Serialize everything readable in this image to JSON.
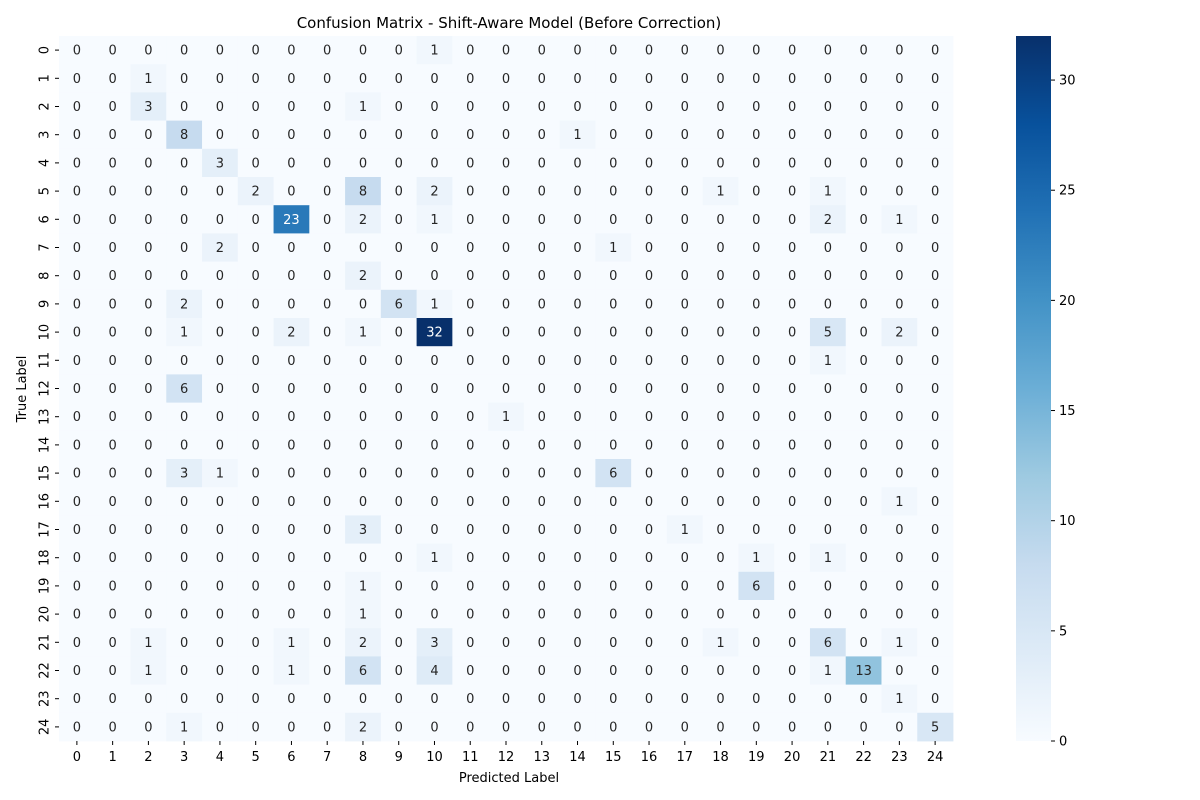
{
  "chart_data": {
    "type": "heatmap",
    "title": "Confusion Matrix - Shift-Aware Model (Before Correction)",
    "xlabel": "Predicted Label",
    "ylabel": "True Label",
    "x_tick_labels": [
      "0",
      "1",
      "2",
      "3",
      "4",
      "5",
      "6",
      "7",
      "8",
      "9",
      "10",
      "11",
      "12",
      "13",
      "14",
      "15",
      "16",
      "17",
      "18",
      "19",
      "20",
      "21",
      "22",
      "23",
      "24"
    ],
    "y_tick_labels": [
      "0",
      "1",
      "2",
      "3",
      "4",
      "5",
      "6",
      "7",
      "8",
      "9",
      "10",
      "11",
      "12",
      "13",
      "14",
      "15",
      "16",
      "17",
      "18",
      "19",
      "20",
      "21",
      "22",
      "23",
      "24"
    ],
    "matrix": [
      [
        0,
        0,
        0,
        0,
        0,
        0,
        0,
        0,
        0,
        0,
        1,
        0,
        0,
        0,
        0,
        0,
        0,
        0,
        0,
        0,
        0,
        0,
        0,
        0,
        0
      ],
      [
        0,
        0,
        1,
        0,
        0,
        0,
        0,
        0,
        0,
        0,
        0,
        0,
        0,
        0,
        0,
        0,
        0,
        0,
        0,
        0,
        0,
        0,
        0,
        0,
        0
      ],
      [
        0,
        0,
        3,
        0,
        0,
        0,
        0,
        0,
        1,
        0,
        0,
        0,
        0,
        0,
        0,
        0,
        0,
        0,
        0,
        0,
        0,
        0,
        0,
        0,
        0
      ],
      [
        0,
        0,
        0,
        8,
        0,
        0,
        0,
        0,
        0,
        0,
        0,
        0,
        0,
        0,
        1,
        0,
        0,
        0,
        0,
        0,
        0,
        0,
        0,
        0,
        0
      ],
      [
        0,
        0,
        0,
        0,
        3,
        0,
        0,
        0,
        0,
        0,
        0,
        0,
        0,
        0,
        0,
        0,
        0,
        0,
        0,
        0,
        0,
        0,
        0,
        0,
        0
      ],
      [
        0,
        0,
        0,
        0,
        0,
        2,
        0,
        0,
        8,
        0,
        2,
        0,
        0,
        0,
        0,
        0,
        0,
        0,
        1,
        0,
        0,
        1,
        0,
        0,
        0
      ],
      [
        0,
        0,
        0,
        0,
        0,
        0,
        23,
        0,
        2,
        0,
        1,
        0,
        0,
        0,
        0,
        0,
        0,
        0,
        0,
        0,
        0,
        2,
        0,
        1,
        0
      ],
      [
        0,
        0,
        0,
        0,
        2,
        0,
        0,
        0,
        0,
        0,
        0,
        0,
        0,
        0,
        0,
        1,
        0,
        0,
        0,
        0,
        0,
        0,
        0,
        0,
        0
      ],
      [
        0,
        0,
        0,
        0,
        0,
        0,
        0,
        0,
        2,
        0,
        0,
        0,
        0,
        0,
        0,
        0,
        0,
        0,
        0,
        0,
        0,
        0,
        0,
        0,
        0
      ],
      [
        0,
        0,
        0,
        2,
        0,
        0,
        0,
        0,
        0,
        6,
        1,
        0,
        0,
        0,
        0,
        0,
        0,
        0,
        0,
        0,
        0,
        0,
        0,
        0,
        0
      ],
      [
        0,
        0,
        0,
        1,
        0,
        0,
        2,
        0,
        1,
        0,
        32,
        0,
        0,
        0,
        0,
        0,
        0,
        0,
        0,
        0,
        0,
        5,
        0,
        2,
        0
      ],
      [
        0,
        0,
        0,
        0,
        0,
        0,
        0,
        0,
        0,
        0,
        0,
        0,
        0,
        0,
        0,
        0,
        0,
        0,
        0,
        0,
        0,
        1,
        0,
        0,
        0
      ],
      [
        0,
        0,
        0,
        6,
        0,
        0,
        0,
        0,
        0,
        0,
        0,
        0,
        0,
        0,
        0,
        0,
        0,
        0,
        0,
        0,
        0,
        0,
        0,
        0,
        0
      ],
      [
        0,
        0,
        0,
        0,
        0,
        0,
        0,
        0,
        0,
        0,
        0,
        0,
        1,
        0,
        0,
        0,
        0,
        0,
        0,
        0,
        0,
        0,
        0,
        0,
        0
      ],
      [
        0,
        0,
        0,
        0,
        0,
        0,
        0,
        0,
        0,
        0,
        0,
        0,
        0,
        0,
        0,
        0,
        0,
        0,
        0,
        0,
        0,
        0,
        0,
        0,
        0
      ],
      [
        0,
        0,
        0,
        3,
        1,
        0,
        0,
        0,
        0,
        0,
        0,
        0,
        0,
        0,
        0,
        6,
        0,
        0,
        0,
        0,
        0,
        0,
        0,
        0,
        0
      ],
      [
        0,
        0,
        0,
        0,
        0,
        0,
        0,
        0,
        0,
        0,
        0,
        0,
        0,
        0,
        0,
        0,
        0,
        0,
        0,
        0,
        0,
        0,
        0,
        1,
        0
      ],
      [
        0,
        0,
        0,
        0,
        0,
        0,
        0,
        0,
        3,
        0,
        0,
        0,
        0,
        0,
        0,
        0,
        0,
        1,
        0,
        0,
        0,
        0,
        0,
        0,
        0
      ],
      [
        0,
        0,
        0,
        0,
        0,
        0,
        0,
        0,
        0,
        0,
        1,
        0,
        0,
        0,
        0,
        0,
        0,
        0,
        0,
        1,
        0,
        1,
        0,
        0,
        0
      ],
      [
        0,
        0,
        0,
        0,
        0,
        0,
        0,
        0,
        1,
        0,
        0,
        0,
        0,
        0,
        0,
        0,
        0,
        0,
        0,
        6,
        0,
        0,
        0,
        0,
        0
      ],
      [
        0,
        0,
        0,
        0,
        0,
        0,
        0,
        0,
        1,
        0,
        0,
        0,
        0,
        0,
        0,
        0,
        0,
        0,
        0,
        0,
        0,
        0,
        0,
        0,
        0
      ],
      [
        0,
        0,
        1,
        0,
        0,
        0,
        1,
        0,
        2,
        0,
        3,
        0,
        0,
        0,
        0,
        0,
        0,
        0,
        1,
        0,
        0,
        6,
        0,
        1,
        0
      ],
      [
        0,
        0,
        1,
        0,
        0,
        0,
        1,
        0,
        6,
        0,
        4,
        0,
        0,
        0,
        0,
        0,
        0,
        0,
        0,
        0,
        0,
        1,
        13,
        0,
        0
      ],
      [
        0,
        0,
        0,
        0,
        0,
        0,
        0,
        0,
        0,
        0,
        0,
        0,
        0,
        0,
        0,
        0,
        0,
        0,
        0,
        0,
        0,
        0,
        0,
        1,
        0
      ],
      [
        0,
        0,
        0,
        1,
        0,
        0,
        0,
        0,
        2,
        0,
        0,
        0,
        0,
        0,
        0,
        0,
        0,
        0,
        0,
        0,
        0,
        0,
        0,
        0,
        5
      ]
    ],
    "colorbar": {
      "min": 0,
      "max": 32,
      "ticks": [
        0,
        5,
        10,
        15,
        20,
        25,
        30
      ]
    },
    "colormap": "Blues",
    "colors": {
      "low": "#f7fbff",
      "high": "#08306b",
      "text_dark": "#262626",
      "text_light": "#ffffff"
    },
    "grid": false,
    "legend": "colorbar-right"
  }
}
